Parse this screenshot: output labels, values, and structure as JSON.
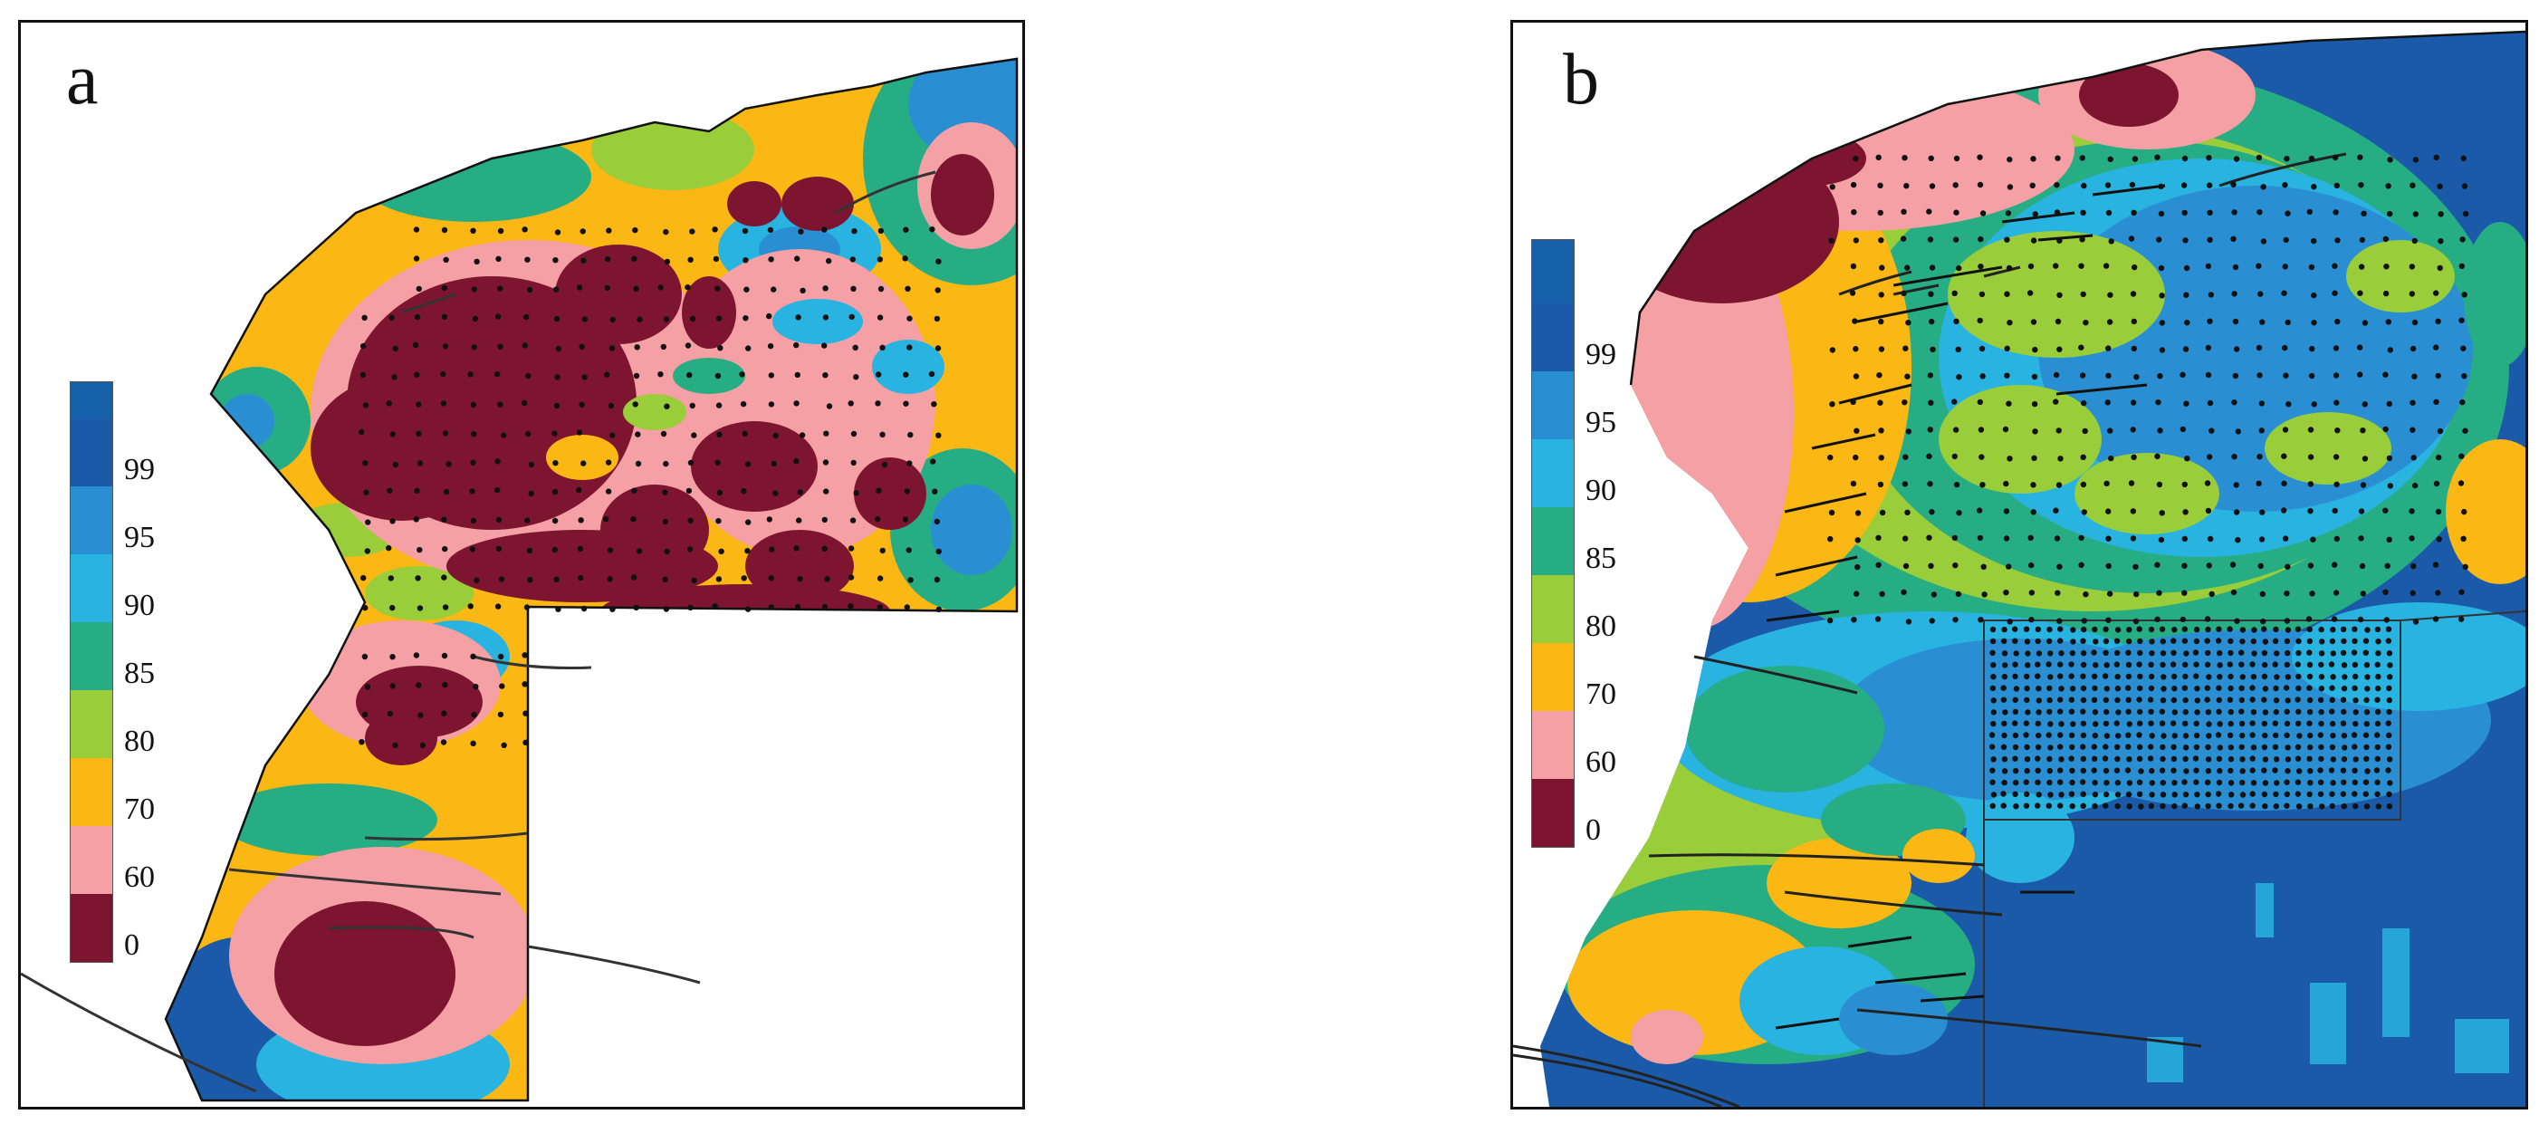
{
  "panels": [
    {
      "label": "a"
    },
    {
      "label": "b"
    }
  ],
  "legend": {
    "classes": [
      {
        "label": "99",
        "color": "#1a5aa8"
      },
      {
        "label": "95",
        "color": "#2a8fd2"
      },
      {
        "label": "90",
        "color": "#29b3e1"
      },
      {
        "label": "85",
        "color": "#27ad83"
      },
      {
        "label": "80",
        "color": "#9acd3a"
      },
      {
        "label": "70",
        "color": "#fbb713"
      },
      {
        "label": "60",
        "color": "#f4a0a4"
      },
      {
        "label": "0",
        "color": "#7d1530"
      }
    ],
    "top_color": "#1560a8"
  }
}
